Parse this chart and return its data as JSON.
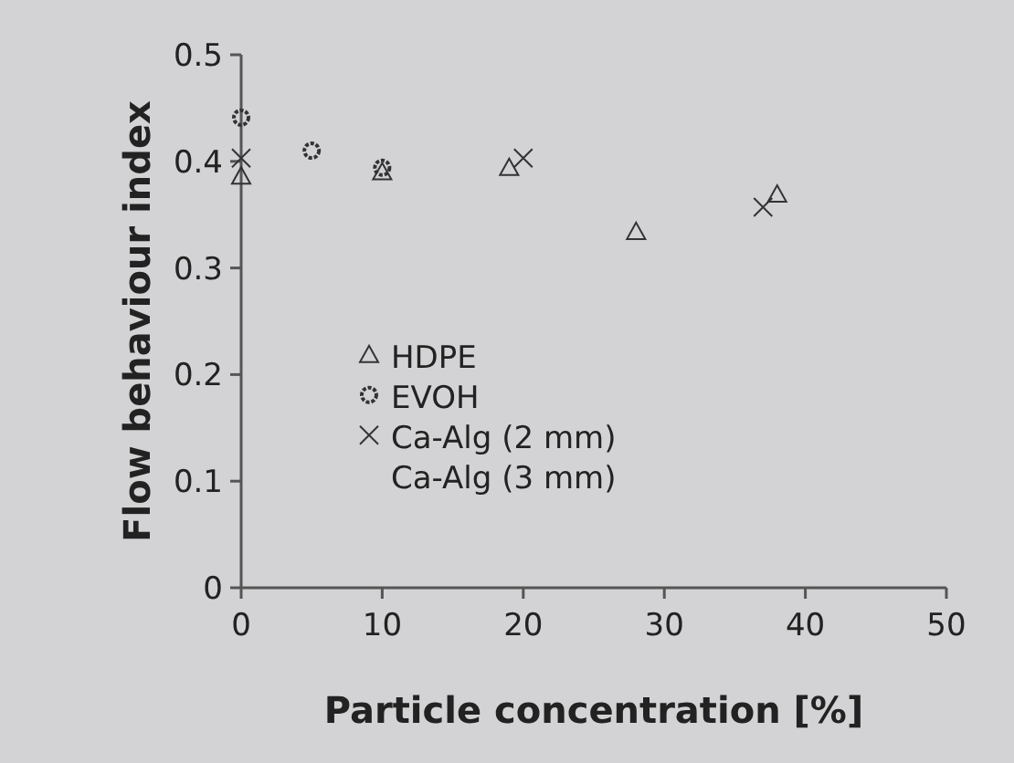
{
  "chart_data": {
    "type": "scatter",
    "xlabel": "Particle concentration [%]",
    "ylabel": "Flow behaviour index",
    "xlim": [
      0,
      50
    ],
    "xticks": [
      0,
      10,
      20,
      30,
      40,
      50
    ],
    "ylim": [
      0,
      0.5
    ],
    "yticks": [
      0,
      0.1,
      0.2,
      0.3,
      0.4,
      0.5
    ],
    "grid": false,
    "legend": "left",
    "series": [
      {
        "name": "HDPE",
        "color": "#333333",
        "marker": "triangle",
        "x": [
          0,
          10,
          19,
          28,
          38
        ],
        "values": [
          0.386,
          0.39,
          0.394,
          0.334,
          0.369
        ]
      },
      {
        "name": "EVOH",
        "color": "#333333",
        "marker": "circle",
        "x": [
          0,
          5,
          10
        ],
        "values": [
          0.441,
          0.41,
          0.394
        ]
      },
      {
        "name": "Ca-Alg (2 mm)",
        "color": "#333333",
        "marker": "cross",
        "x": [
          0,
          20,
          37
        ],
        "values": [
          0.403,
          0.403,
          0.357
        ]
      },
      {
        "name": "Ca-Alg (3 mm)",
        "color": "#333333",
        "marker": "none"
      }
    ]
  }
}
